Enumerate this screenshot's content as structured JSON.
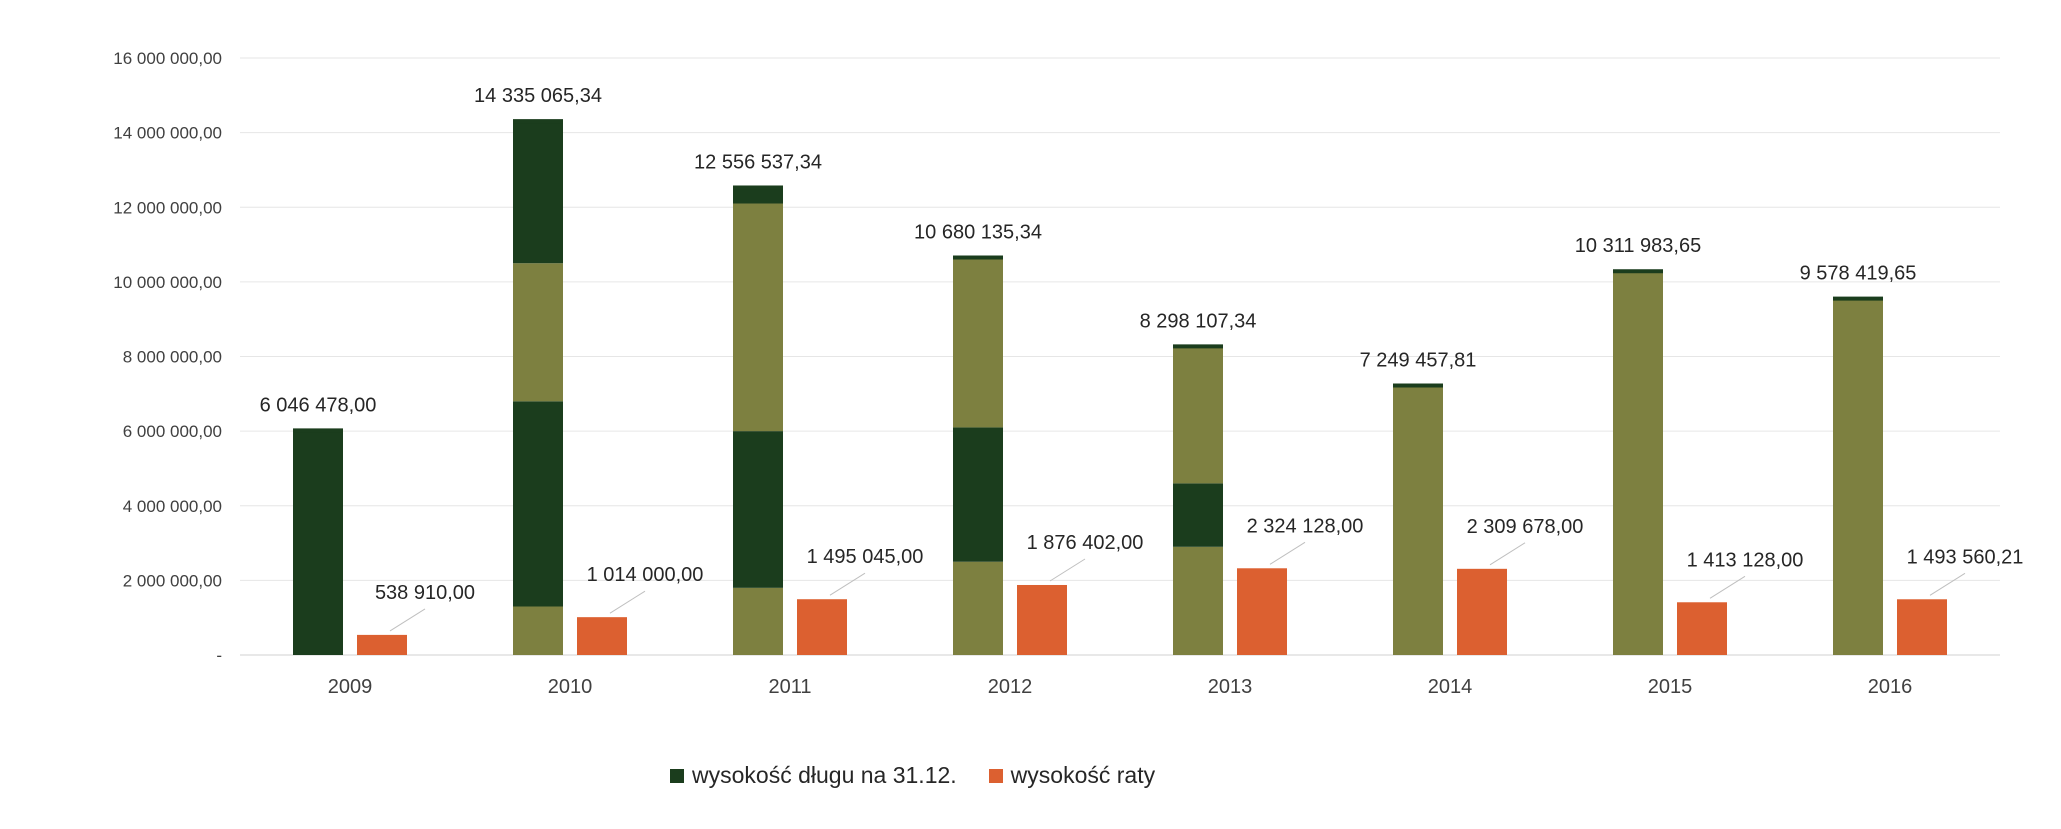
{
  "chart_data": {
    "type": "bar",
    "categories": [
      "2009",
      "2010",
      "2011",
      "2012",
      "2013",
      "2014",
      "2015",
      "2016"
    ],
    "series": [
      {
        "name": "wysokość długu na 31.12.",
        "values": [
          6046478.0,
          14335065.34,
          12556537.34,
          10680135.34,
          8298107.34,
          7249457.81,
          10311983.65,
          9578419.65
        ],
        "labels": [
          "6 046 478,00",
          "14 335 065,34",
          "12 556 537,34",
          "10 680 135,34",
          "8 298 107,34",
          "7 249 457,81",
          "10 311 983,65",
          "9 578 419,65"
        ],
        "color": "#1b3d1d"
      },
      {
        "name": "wysokość raty",
        "values": [
          538910.0,
          1014000.0,
          1495045.0,
          1876402.0,
          2324128.0,
          2309678.0,
          1413128.0,
          1493560.21
        ],
        "labels": [
          "538 910,00",
          "1 014 000,00",
          "1 495 045,00",
          "1 876 402,00",
          "2 324 128,00",
          "2 309 678,00",
          "1 413 128,00",
          "1 493 560,21"
        ],
        "color": "#dc6030"
      }
    ],
    "debt_segments": [
      [
        {
          "value": 6046478.0,
          "color": "#1b3d1d"
        }
      ],
      [
        {
          "value": 1300000,
          "color": "#7d8040"
        },
        {
          "value": 5500000,
          "color": "#1b3d1d"
        },
        {
          "value": 3700000,
          "color": "#7d8040"
        },
        {
          "value": 3835065.34,
          "color": "#1b3d1d"
        }
      ],
      [
        {
          "value": 1800000,
          "color": "#7d8040"
        },
        {
          "value": 4200000,
          "color": "#1b3d1d"
        },
        {
          "value": 6100000,
          "color": "#7d8040"
        },
        {
          "value": 456537.34,
          "color": "#1b3d1d"
        }
      ],
      [
        {
          "value": 2500000,
          "color": "#7d8040"
        },
        {
          "value": 3600000,
          "color": "#1b3d1d"
        },
        {
          "value": 4580135.34,
          "color": "#7d8040"
        }
      ],
      [
        {
          "value": 2900000,
          "color": "#7d8040"
        },
        {
          "value": 1700000,
          "color": "#1b3d1d"
        },
        {
          "value": 3698107.34,
          "color": "#7d8040"
        }
      ],
      [
        {
          "value": 7249457.81,
          "color": "#7d8040"
        }
      ],
      [
        {
          "value": 10311983.65,
          "color": "#7d8040"
        }
      ],
      [
        {
          "value": 9578419.65,
          "color": "#7d8040"
        }
      ]
    ],
    "y_ticks": [
      {
        "value": 0,
        "label": "-"
      },
      {
        "value": 2000000,
        "label": "2 000 000,00"
      },
      {
        "value": 4000000,
        "label": "4 000 000,00"
      },
      {
        "value": 6000000,
        "label": "6 000 000,00"
      },
      {
        "value": 8000000,
        "label": "8 000 000,00"
      },
      {
        "value": 10000000,
        "label": "10 000 000,00"
      },
      {
        "value": 12000000,
        "label": "12 000 000,00"
      },
      {
        "value": 14000000,
        "label": "14 000 000,00"
      },
      {
        "value": 16000000,
        "label": "16 000 000,00"
      }
    ],
    "ylim": [
      0,
      16000000
    ],
    "grid": true,
    "legend_position": "bottom",
    "title": "",
    "xlabel": "",
    "ylabel": ""
  },
  "legend": {
    "debt_label": "wysokość długu na 31.12.",
    "rate_label": "wysokość raty"
  }
}
